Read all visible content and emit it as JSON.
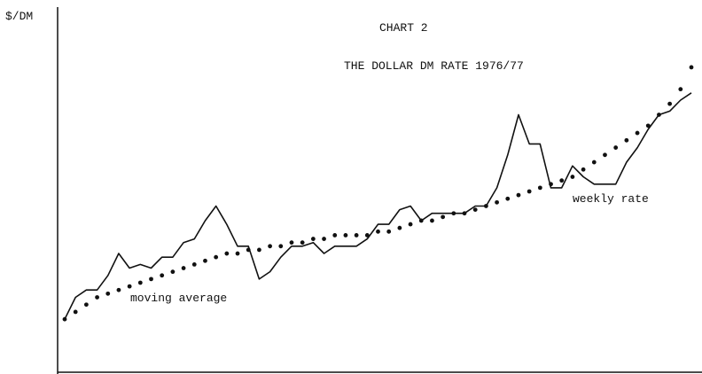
{
  "chart_data": {
    "type": "line",
    "title": "CHART 2",
    "subtitle": "THE DOLLAR DM RATE 1976/77",
    "y_label": "$/DM",
    "ylim": [
      0,
      100
    ],
    "series": [
      {
        "name": "weekly rate",
        "color": "#111111",
        "style": "solid",
        "values": [
          15,
          21,
          23,
          23,
          27,
          33,
          29,
          30,
          29,
          32,
          32,
          36,
          37,
          42,
          46,
          41,
          35,
          35,
          26,
          28,
          32,
          35,
          35,
          36,
          33,
          35,
          35,
          35,
          37,
          41,
          41,
          45,
          46,
          42,
          44,
          44,
          44,
          44,
          46,
          46,
          51,
          60,
          71,
          63,
          63,
          51,
          51,
          57,
          54,
          52,
          52,
          52,
          58,
          62,
          67,
          71,
          72,
          75,
          77
        ]
      },
      {
        "name": "moving average",
        "color": "#111111",
        "style": "dotted",
        "values": [
          15,
          17,
          19,
          21,
          22,
          23,
          24,
          25,
          26,
          27,
          28,
          29,
          30,
          31,
          32,
          33,
          33,
          34,
          34,
          35,
          35,
          36,
          36,
          37,
          37,
          38,
          38,
          38,
          38,
          39,
          39,
          40,
          41,
          42,
          42,
          43,
          44,
          44,
          45,
          46,
          47,
          48,
          49,
          50,
          51,
          52,
          53,
          54,
          56,
          58,
          60,
          62,
          64,
          66,
          68,
          71,
          74,
          78,
          84
        ]
      }
    ]
  }
}
